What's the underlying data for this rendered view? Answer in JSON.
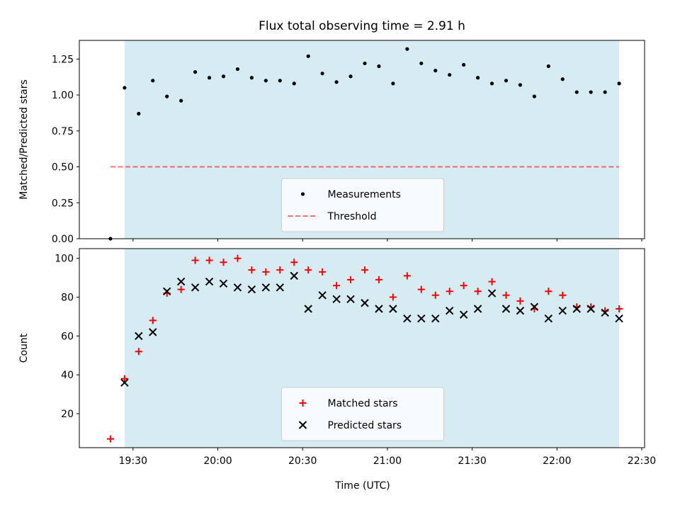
{
  "title": "Flux total observing time = 2.91 h",
  "colors": {
    "shade": "#add8e6",
    "measurement": "#000000",
    "threshold": "#ff0000",
    "matched": "#ff0000",
    "predicted": "#000000"
  },
  "chart_data": [
    {
      "type": "scatter",
      "ylabel": "Matched/Predicted stars",
      "ylim": [
        0,
        1.38
      ],
      "yticks": [
        0.0,
        0.25,
        0.5,
        0.75,
        1.0,
        1.25
      ],
      "ytick_labels": [
        "0.00",
        "0.25",
        "0.50",
        "0.75",
        "1.00",
        "1.25"
      ],
      "xlim": [
        "19:11",
        "22:31"
      ],
      "xticks": [
        "19:30",
        "20:00",
        "20:30",
        "21:00",
        "21:30",
        "22:00",
        "22:30"
      ],
      "shaded_span": [
        "19:27",
        "22:22"
      ],
      "threshold": {
        "label": "Threshold",
        "y": 0.5,
        "x_range": [
          "19:22",
          "22:22"
        ],
        "style": "dashed"
      },
      "legend_position": "lower center",
      "series": [
        {
          "name": "Measurements",
          "marker": "dot",
          "x": [
            "19:22",
            "19:27",
            "19:32",
            "19:37",
            "19:42",
            "19:47",
            "19:52",
            "19:57",
            "20:02",
            "20:07",
            "20:12",
            "20:17",
            "20:22",
            "20:27",
            "20:32",
            "20:37",
            "20:42",
            "20:47",
            "20:52",
            "20:57",
            "21:02",
            "21:07",
            "21:12",
            "21:17",
            "21:22",
            "21:27",
            "21:32",
            "21:37",
            "21:42",
            "21:47",
            "21:52",
            "21:57",
            "22:02",
            "22:07",
            "22:12",
            "22:17",
            "22:22"
          ],
          "y": [
            0.0,
            1.05,
            0.87,
            1.1,
            0.99,
            0.96,
            1.16,
            1.12,
            1.13,
            1.18,
            1.12,
            1.1,
            1.1,
            1.08,
            1.27,
            1.15,
            1.09,
            1.13,
            1.22,
            1.2,
            1.08,
            1.32,
            1.22,
            1.17,
            1.14,
            1.21,
            1.12,
            1.08,
            1.1,
            1.07,
            0.99,
            1.2,
            1.11,
            1.02,
            1.02,
            1.02,
            1.08
          ]
        }
      ]
    },
    {
      "type": "scatter",
      "ylabel": "Count",
      "xlabel": "Time (UTC)",
      "ylim": [
        2.5,
        105
      ],
      "yticks": [
        20,
        40,
        60,
        80,
        100
      ],
      "ytick_labels": [
        "20",
        "40",
        "60",
        "80",
        "100"
      ],
      "xlim": [
        "19:11",
        "22:31"
      ],
      "xticks": [
        "19:30",
        "20:00",
        "20:30",
        "21:00",
        "21:30",
        "22:00",
        "22:30"
      ],
      "shaded_span": [
        "19:27",
        "22:22"
      ],
      "legend_position": "lower center",
      "series": [
        {
          "name": "Matched stars",
          "marker": "plus",
          "x": [
            "19:22",
            "19:27",
            "19:32",
            "19:37",
            "19:42",
            "19:47",
            "19:52",
            "19:57",
            "20:02",
            "20:07",
            "20:12",
            "20:17",
            "20:22",
            "20:27",
            "20:32",
            "20:37",
            "20:42",
            "20:47",
            "20:52",
            "20:57",
            "21:02",
            "21:07",
            "21:12",
            "21:17",
            "21:22",
            "21:27",
            "21:32",
            "21:37",
            "21:42",
            "21:47",
            "21:52",
            "21:57",
            "22:02",
            "22:07",
            "22:12",
            "22:17",
            "22:22"
          ],
          "y": [
            7,
            38,
            52,
            68,
            82,
            84,
            99,
            99,
            98,
            100,
            94,
            93,
            94,
            98,
            94,
            93,
            86,
            89,
            94,
            89,
            80,
            91,
            84,
            81,
            83,
            86,
            83,
            88,
            81,
            78,
            74,
            83,
            81,
            75,
            75,
            73,
            74
          ]
        },
        {
          "name": "Predicted stars",
          "marker": "x",
          "x": [
            "19:27",
            "19:32",
            "19:37",
            "19:42",
            "19:47",
            "19:52",
            "19:57",
            "20:02",
            "20:07",
            "20:12",
            "20:17",
            "20:22",
            "20:27",
            "20:32",
            "20:37",
            "20:42",
            "20:47",
            "20:52",
            "20:57",
            "21:02",
            "21:07",
            "21:12",
            "21:17",
            "21:22",
            "21:27",
            "21:32",
            "21:37",
            "21:42",
            "21:47",
            "21:52",
            "21:57",
            "22:02",
            "22:07",
            "22:12",
            "22:17",
            "22:22"
          ],
          "y": [
            36,
            60,
            62,
            83,
            88,
            85,
            88,
            87,
            85,
            84,
            85,
            85,
            91,
            74,
            81,
            79,
            79,
            77,
            74,
            74,
            69,
            69,
            69,
            73,
            71,
            74,
            82,
            74,
            73,
            75,
            69,
            73,
            74,
            74,
            72,
            69
          ]
        }
      ]
    }
  ]
}
